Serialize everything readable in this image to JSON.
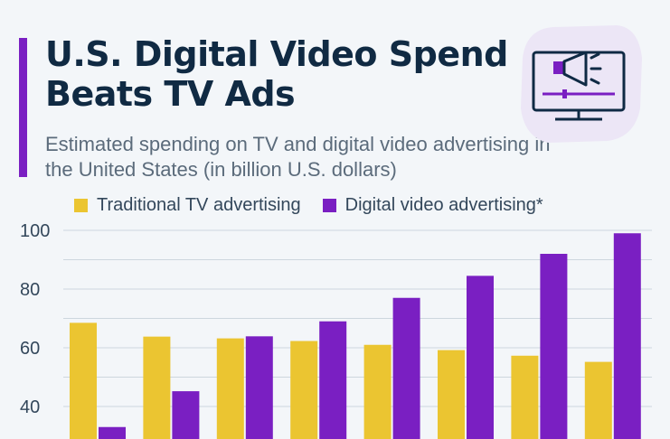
{
  "header": {
    "title": "U.S. Digital Video Spend Beats TV Ads",
    "subtitle": "Estimated spending on TV and digital video advertising in the United States (in billion U.S. dollars)"
  },
  "colors": {
    "accent": "#7a1fc2",
    "tv": "#ebc531",
    "digital": "#7a1fc2",
    "grid": "#cdd6de",
    "axis_text": "#33475b",
    "icon_bg": "#ece6f6"
  },
  "icon": {
    "name": "megaphone-monitor-icon"
  },
  "chart_data": {
    "type": "bar",
    "title": "U.S. Digital Video Spend Beats TV Ads",
    "subtitle": "Estimated spending on TV and digital video advertising in the United States (in billion U.S. dollars)",
    "categories": [
      "",
      "",
      "",
      "",
      "",
      "",
      "",
      ""
    ],
    "series": [
      {
        "name": "Traditional TV advertising",
        "color": "#ebc531",
        "values": [
          68.5,
          63.8,
          63.2,
          62.3,
          61.0,
          59.2,
          57.3,
          55.2
        ]
      },
      {
        "name": "Digital video advertising*",
        "color": "#7a1fc2",
        "values": [
          33.0,
          45.2,
          63.9,
          69.0,
          77.0,
          84.5,
          92.0,
          99.0
        ]
      }
    ],
    "yticks": [
      40,
      60,
      80,
      100
    ],
    "ylim": [
      30,
      100
    ],
    "grid": true,
    "legend": "top-left"
  }
}
